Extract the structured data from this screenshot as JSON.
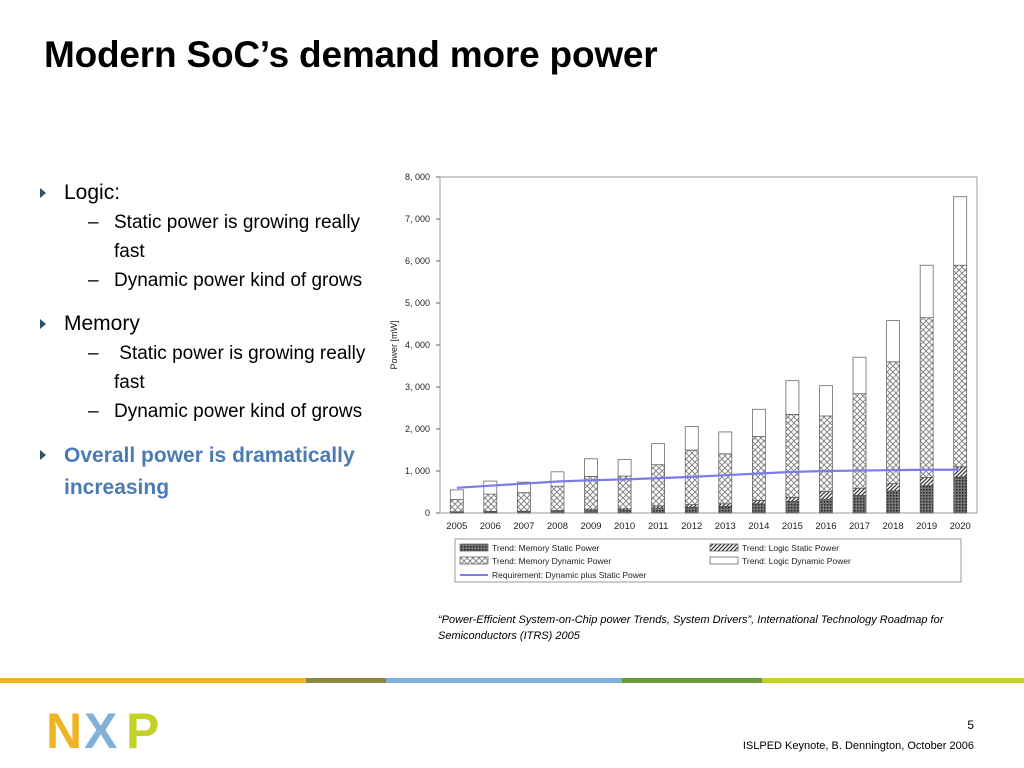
{
  "slide": {
    "title": "Modern SoC’s demand more power",
    "page_number": "5",
    "footer": "ISLPED Keynote, B. Dennington, October 2006",
    "caption": "“Power-Efficient System-on-Chip power Trends, System Drivers”, International Technology Roadmap for Semiconductors (ITRS) 2005",
    "logo_text": "NXP"
  },
  "bullets": [
    {
      "label": "Logic:",
      "subs": [
        "Static power is growing really fast",
        "Dynamic power kind of grows"
      ]
    },
    {
      "label": "Memory",
      "subs": [
        " Static power is growing really fast",
        "Dynamic power kind of grows"
      ]
    },
    {
      "label": "Overall power is dramatically increasing",
      "highlight": true,
      "subs": []
    }
  ],
  "colors": {
    "accent_blue": "#4a7bb7",
    "bullet_arrow": "#2f4f6f",
    "requirement_line": "#7b7bea",
    "rule_segments": [
      "#f0b323",
      "#8a8a3e",
      "#7fb1d9",
      "#6b9a3a",
      "#c3d12a"
    ],
    "logo_n": "#f0b323",
    "logo_x": "#7fb1d9",
    "logo_p": "#c3d12a"
  },
  "chart_data": {
    "type": "bar",
    "stacked": true,
    "ylabel": "Power [mW]",
    "ylim": [
      0,
      8000
    ],
    "yticks": [
      "0",
      "1, 000",
      "2, 000",
      "3, 000",
      "4, 000",
      "5, 000",
      "6, 000",
      "7, 000",
      "8, 000"
    ],
    "categories": [
      "2005",
      "2006",
      "2007",
      "2008",
      "2009",
      "2010",
      "2011",
      "2012",
      "2013",
      "2014",
      "2015",
      "2016",
      "2017",
      "2018",
      "2019",
      "2020"
    ],
    "series": [
      {
        "name": "Trend:  Memory Static Power",
        "pattern": "dots",
        "values": [
          20,
          25,
          30,
          40,
          60,
          70,
          120,
          140,
          160,
          220,
          280,
          330,
          420,
          530,
          650,
          860
        ]
      },
      {
        "name": "Trend:  Logic Static Power",
        "pattern": "hatch",
        "values": [
          10,
          15,
          15,
          20,
          30,
          30,
          50,
          60,
          60,
          80,
          90,
          180,
          170,
          170,
          200,
          240
        ]
      },
      {
        "name": "Trend:  Memory Dynamic Power",
        "pattern": "crosshatch",
        "values": [
          290,
          410,
          440,
          580,
          780,
          780,
          980,
          1300,
          1190,
          1520,
          1980,
          1800,
          2250,
          2900,
          3800,
          4800
        ]
      },
      {
        "name": "Trend:  Logic Dynamic Power",
        "pattern": "white",
        "values": [
          230,
          310,
          250,
          340,
          420,
          390,
          500,
          560,
          520,
          650,
          800,
          720,
          870,
          980,
          1250,
          1630
        ]
      }
    ],
    "line_series": {
      "name": "Requirement:  Dynamic plus Static Power",
      "values": [
        600,
        650,
        700,
        750,
        780,
        800,
        830,
        860,
        900,
        940,
        980,
        1000,
        1010,
        1020,
        1030,
        1030
      ]
    },
    "legend_position": "bottom",
    "grid": false
  }
}
